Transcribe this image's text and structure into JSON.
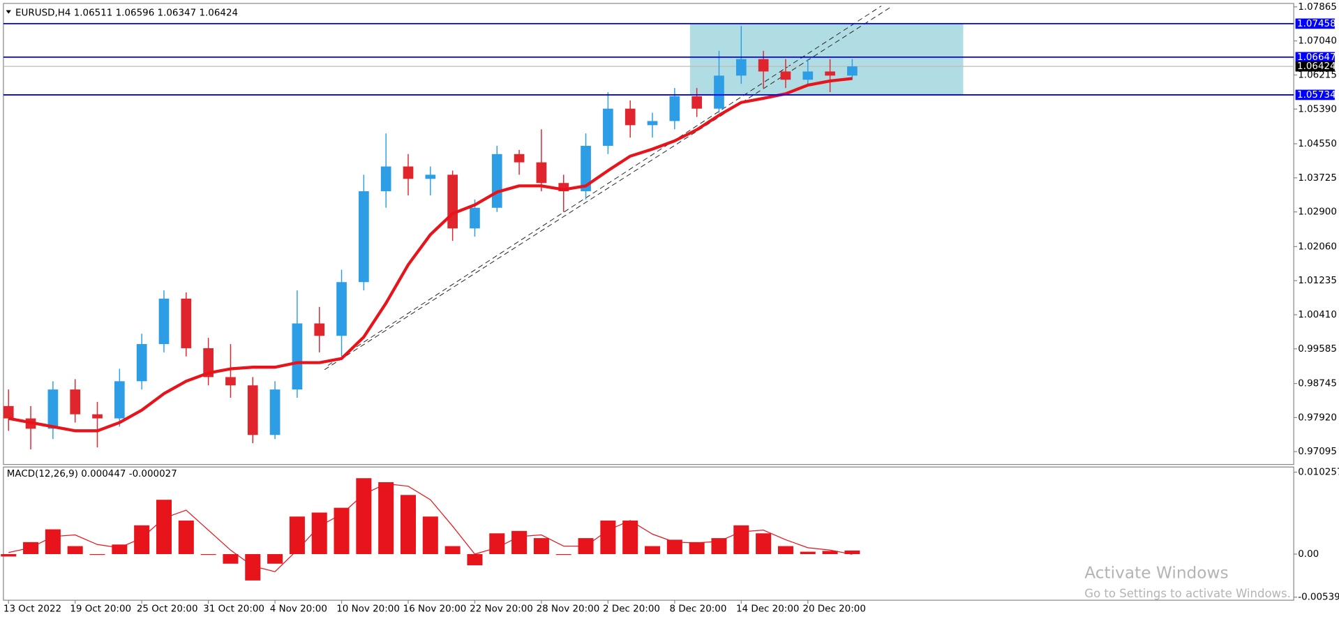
{
  "chart_data": [
    {
      "type": "candlestick",
      "title": "EURUSD,H4 1.06511 1.06596 1.06347 1.06424",
      "open": [
        0.982,
        0.979,
        0.9765,
        0.986,
        0.98,
        0.979,
        0.988,
        0.997,
        1.008,
        0.996,
        0.989,
        0.987,
        0.975,
        0.986,
        1.002,
        0.999,
        1.012,
        1.034,
        1.04,
        1.037,
        1.038,
        1.025,
        1.03,
        1.043,
        1.041,
        1.036,
        1.034,
        1.045,
        1.054,
        1.05,
        1.051,
        1.057,
        1.054,
        1.062,
        1.066,
        1.063,
        1.061,
        1.063,
        1.062
      ],
      "high": [
        0.986,
        0.982,
        0.988,
        0.9885,
        0.983,
        0.991,
        0.9995,
        1.01,
        1.0095,
        0.9985,
        0.997,
        0.989,
        0.988,
        1.01,
        1.006,
        1.015,
        1.038,
        1.048,
        1.043,
        1.04,
        1.039,
        1.032,
        1.045,
        1.044,
        1.049,
        1.038,
        1.048,
        1.058,
        1.056,
        1.053,
        1.059,
        1.059,
        1.068,
        1.074,
        1.068,
        1.066,
        1.066,
        1.066,
        1.066
      ],
      "low": [
        0.976,
        0.9715,
        0.974,
        0.978,
        0.972,
        0.977,
        0.986,
        0.995,
        0.994,
        0.987,
        0.984,
        0.973,
        0.974,
        0.984,
        0.995,
        0.994,
        1.01,
        1.03,
        1.033,
        1.033,
        1.022,
        1.023,
        1.029,
        1.038,
        1.034,
        1.029,
        1.032,
        1.043,
        1.047,
        1.047,
        1.049,
        1.052,
        1.053,
        1.06,
        1.059,
        1.059,
        1.06,
        1.058,
        1.061
      ],
      "close": [
        0.979,
        0.9765,
        0.986,
        0.98,
        0.979,
        0.988,
        0.997,
        1.008,
        0.996,
        0.989,
        0.987,
        0.975,
        0.986,
        1.002,
        0.999,
        1.012,
        1.034,
        1.04,
        1.037,
        1.038,
        1.025,
        1.03,
        1.043,
        1.041,
        1.036,
        1.034,
        1.045,
        1.054,
        1.05,
        1.051,
        1.057,
        1.054,
        1.062,
        1.066,
        1.063,
        1.061,
        1.063,
        1.062,
        1.06424
      ],
      "up_color": "#2d9ee6",
      "down_color": "#e0262c",
      "ma": {
        "color": "#e8141b",
        "values": [
          0.979,
          0.978,
          0.977,
          0.976,
          0.976,
          0.978,
          0.981,
          0.985,
          0.988,
          0.99,
          0.991,
          0.9914,
          0.9914,
          0.9925,
          0.9925,
          0.9935,
          0.9987,
          1.0069,
          1.0162,
          1.0235,
          1.0286,
          1.0307,
          1.0338,
          1.0353,
          1.0353,
          1.0344,
          1.0353,
          1.039,
          1.0425,
          1.0442,
          1.0462,
          1.0489,
          1.0524,
          1.0555,
          1.0565,
          1.0576,
          1.0597,
          1.0607,
          1.0613
        ]
      },
      "ylim": [
        0.96785,
        1.07948
      ],
      "yticks": [
        1.07865,
        {
          "value": 1.0704,
          "label": "1.07040"
        },
        1.06215,
        {
          "value": 1.0539,
          "label": "1.05390"
        },
        {
          "value": 1.0455,
          "label": "1.04550"
        },
        1.03725,
        {
          "value": 1.029,
          "label": "1.02900"
        },
        {
          "value": 1.0206,
          "label": "1.02060"
        },
        1.01235,
        {
          "value": 1.0041,
          "label": "1.00410"
        },
        0.99585,
        0.98745,
        {
          "value": 0.9792,
          "label": "0.97920"
        },
        0.97095
      ],
      "hlines": [
        {
          "value": 1.07458,
          "color": "#0000ff"
        },
        {
          "value": 1.06647,
          "color": "#0000ff"
        },
        {
          "value": 1.05734,
          "color": "#0000ff"
        }
      ],
      "current_price": {
        "value": 1.06424,
        "color": "#000000"
      },
      "zone_color": "#b0dde4",
      "xticks": [
        {
          "value": 0,
          "label": "13 Oct 2022"
        },
        {
          "value": 3,
          "label": "19 Oct 20:00"
        },
        {
          "value": 6,
          "label": "25 Oct 20:00"
        },
        {
          "value": 9,
          "label": "31 Oct 20:00"
        },
        {
          "value": 12,
          "label": "4 Nov 20:00"
        },
        {
          "value": 15,
          "label": "10 Nov 20:00"
        },
        {
          "value": 18,
          "label": "16 Nov 20:00"
        },
        {
          "value": 21,
          "label": "22 Nov 20:00"
        },
        {
          "value": 24,
          "label": "28 Nov 20:00"
        },
        {
          "value": 27,
          "label": "2 Dec 20:00"
        },
        {
          "value": 30,
          "label": "8 Dec 20:00"
        },
        {
          "value": 33,
          "label": "14 Dec 20:00"
        },
        {
          "value": 36,
          "label": "20 Dec 20:00"
        }
      ]
    },
    {
      "type": "macd",
      "title": "MACD(12,26,9) 0.000447 -0.000027",
      "values": [
        -0.0003,
        0.0015,
        0.0031,
        0.001,
        -0.0001,
        0.0012,
        0.0036,
        0.0068,
        0.0042,
        -0.0001,
        -0.0012,
        -0.0033,
        -0.0012,
        0.0047,
        0.0052,
        0.0058,
        0.0095,
        0.009,
        0.0074,
        0.0047,
        0.001,
        -0.0014,
        0.0026,
        0.0029,
        0.002,
        -0.0001,
        0.002,
        0.0042,
        0.0042,
        0.001,
        0.0018,
        0.0015,
        0.002,
        0.0036,
        0.0026,
        0.001,
        0.0003,
        0.0004,
        0.000447
      ],
      "color": "#e8141b",
      "signal": {
        "color": "#e8141b",
        "values": [
          0.0002,
          0.0008,
          0.0022,
          0.0024,
          0.0012,
          0.0008,
          0.002,
          0.0045,
          0.0055,
          0.003,
          0.0005,
          -0.0015,
          -0.0022,
          0.0005,
          0.0035,
          0.005,
          0.0075,
          0.0088,
          0.0085,
          0.0068,
          0.0035,
          0.0,
          0.0008,
          0.0022,
          0.0024,
          0.001,
          0.001,
          0.003,
          0.0042,
          0.0025,
          0.0015,
          0.0014,
          0.0016,
          0.0028,
          0.003,
          0.0018,
          0.0008,
          0.0005,
          -2.7e-05
        ]
      },
      "ylim": [
        -0.00577,
        0.010898
      ],
      "yticks": [
        0.010257,
        {
          "value": 0,
          "label": "0.00"
        },
        -0.005392
      ]
    }
  ],
  "watermark": {
    "title": "Activate Windows",
    "subtitle": "Go to Settings to activate Windows."
  }
}
